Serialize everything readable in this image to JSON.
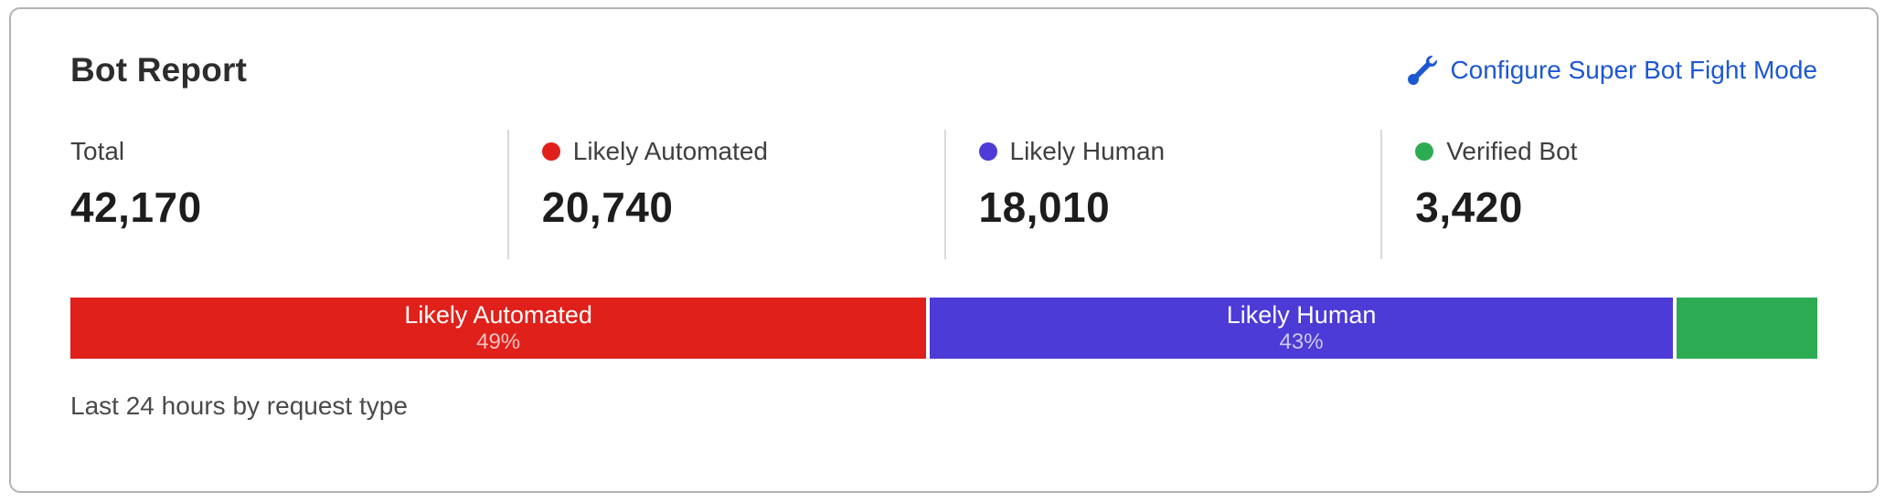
{
  "card": {
    "title": "Bot Report",
    "configure": {
      "label": "Configure Super Bot Fight Mode",
      "icon": "wrench-icon",
      "color": "#1d58d1"
    },
    "stats": [
      {
        "label": "Total",
        "value": "42,170",
        "dot_color": null
      },
      {
        "label": "Likely Automated",
        "value": "20,740",
        "dot_color": "#e0201a"
      },
      {
        "label": "Likely Human",
        "value": "18,010",
        "dot_color": "#4c3bd6"
      },
      {
        "label": "Verified Bot",
        "value": "3,420",
        "dot_color": "#2dab53"
      }
    ],
    "caption": "Last 24 hours by request type"
  },
  "chart_data": {
    "type": "bar",
    "variant": "stacked-horizontal-percentage",
    "title": "Bot Report",
    "subtitle": "Last 24 hours by request type",
    "total": 42170,
    "categories": [
      "Likely Automated",
      "Likely Human",
      "Verified Bot"
    ],
    "values": [
      20740,
      18010,
      3420
    ],
    "percentages": [
      49,
      43,
      8
    ],
    "colors": [
      "#e0201a",
      "#4c3bd6",
      "#2dab53"
    ],
    "legend_position": "top",
    "segments": [
      {
        "category": "Likely Automated",
        "value": 20740,
        "bar_label": "Likely Automated",
        "bar_percent_label": "49%",
        "width_pct": 49.2,
        "color": "#e0201a"
      },
      {
        "category": "Likely Human",
        "value": 18010,
        "bar_label": "Likely Human",
        "bar_percent_label": "43%",
        "width_pct": 42.7,
        "color": "#4c3bd6"
      },
      {
        "category": "Verified Bot",
        "value": 3420,
        "bar_label": "",
        "bar_percent_label": "",
        "width_pct": 8.1,
        "color": "#2dab53"
      }
    ]
  }
}
